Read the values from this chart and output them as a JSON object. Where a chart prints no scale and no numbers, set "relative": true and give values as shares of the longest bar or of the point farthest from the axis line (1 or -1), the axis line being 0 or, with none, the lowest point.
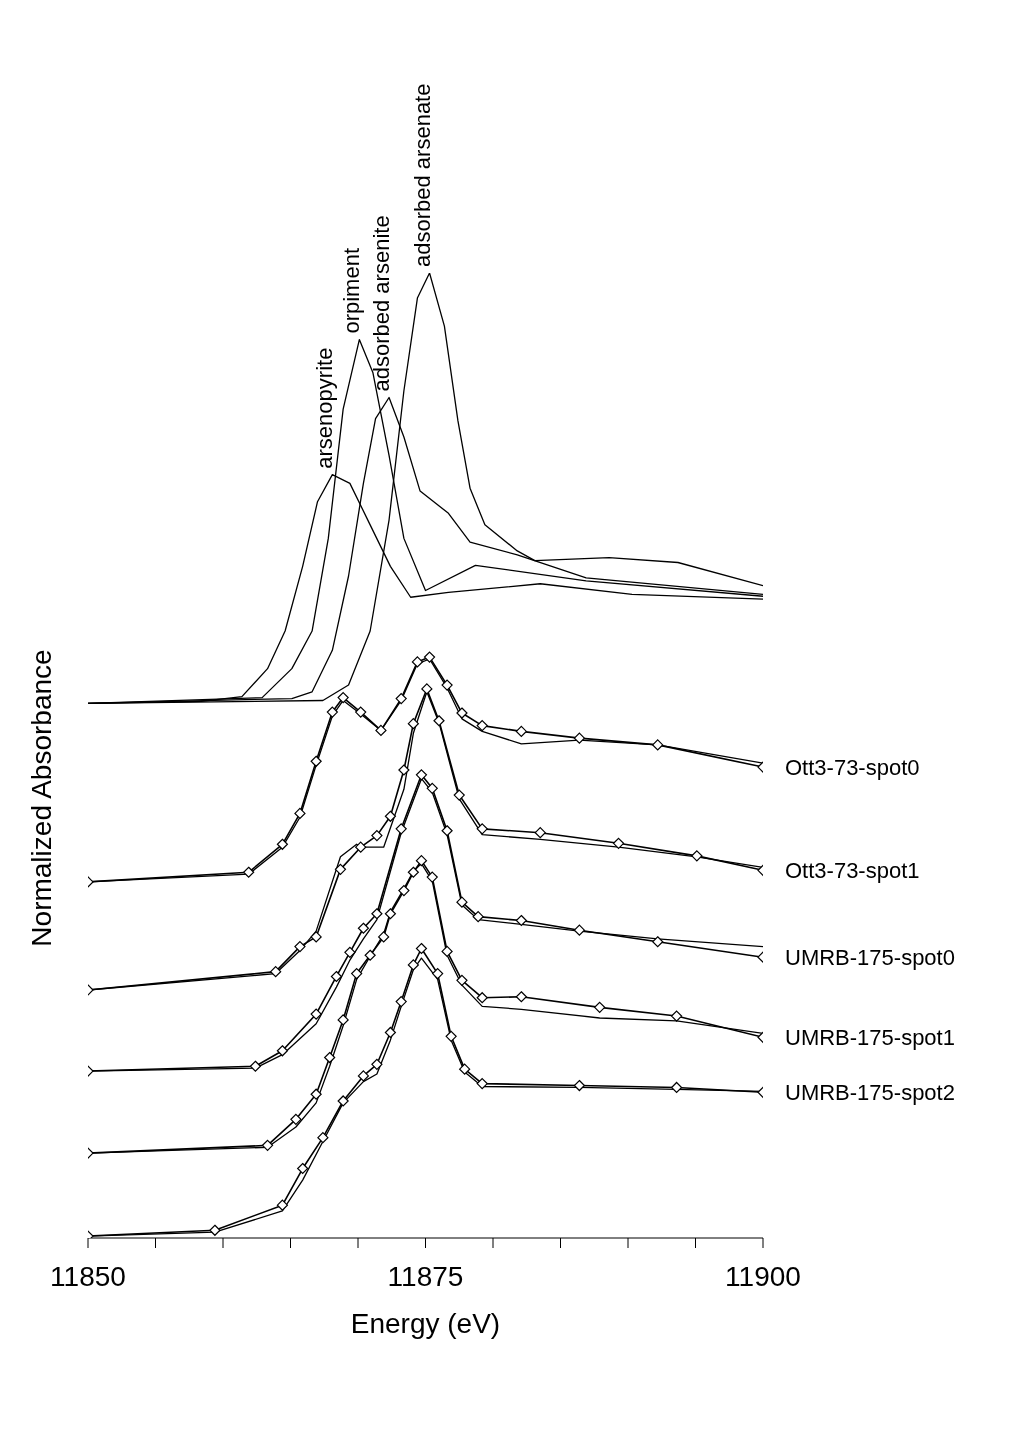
{
  "chart_data": {
    "type": "line",
    "relative": true,
    "xlabel": "Energy (eV)",
    "ylabel": "Normalized Absorbance",
    "xlim": [
      11850,
      11900
    ],
    "xticks": [
      11850,
      {
        "value": 11855,
        "label": null
      },
      {
        "value": 11860,
        "label": null
      },
      {
        "value": 11865,
        "label": null
      },
      {
        "value": 11870,
        "label": null
      },
      11875,
      {
        "value": 11880,
        "label": null
      },
      {
        "value": 11885,
        "label": null
      },
      {
        "value": 11890,
        "label": null
      },
      {
        "value": 11895,
        "label": null
      },
      11900
    ],
    "line_style": "solid",
    "series": [
      {
        "name": "arsenopyrite",
        "color": "#000000",
        "marker": "none",
        "x": [
          11850,
          11858.4,
          11861.4,
          11863.3,
          11864.6,
          11865.9,
          11867,
          11868.1,
          11869.4,
          11870.9,
          11872.4,
          11873.9,
          11876.7,
          11883.5,
          11890.3,
          11900
        ],
        "values": [
          0.554,
          0.556,
          0.561,
          0.59,
          0.629,
          0.696,
          0.763,
          0.791,
          0.782,
          0.739,
          0.696,
          0.664,
          0.669,
          0.678,
          0.667,
          0.662
        ]
      },
      {
        "name": "orpiment",
        "color": "#000000",
        "marker": "none",
        "x": [
          11850,
          11862.9,
          11865.1,
          11866.6,
          11867.8,
          11868.9,
          11870.1,
          11871.1,
          11872.3,
          11873.4,
          11875,
          11878.7,
          11886.9,
          11900
        ],
        "values": [
          0.554,
          0.56,
          0.59,
          0.629,
          0.725,
          0.859,
          0.931,
          0.897,
          0.811,
          0.725,
          0.671,
          0.697,
          0.681,
          0.665
        ]
      },
      {
        "name": "adsorbed arsenite",
        "color": "#000000",
        "marker": "none",
        "x": [
          11850,
          11865.1,
          11866.6,
          11868.1,
          11869.3,
          11870.4,
          11871.3,
          11872.3,
          11873.4,
          11874.6,
          11876.7,
          11878.3,
          11881.8,
          11886.9,
          11900
        ],
        "values": [
          0.554,
          0.559,
          0.566,
          0.609,
          0.686,
          0.782,
          0.849,
          0.871,
          0.83,
          0.774,
          0.751,
          0.721,
          0.708,
          0.684,
          0.667
        ]
      },
      {
        "name": "adsorbed arsenate",
        "color": "#000000",
        "marker": "none",
        "x": [
          11850,
          11867.4,
          11869.3,
          11870.9,
          11872.3,
          11873.4,
          11874.4,
          11875.3,
          11876.4,
          11877.4,
          11878.3,
          11879.4,
          11881.8,
          11883.1,
          11888.6,
          11893.7,
          11900
        ],
        "values": [
          0.554,
          0.557,
          0.573,
          0.629,
          0.744,
          0.878,
          0.974,
          1,
          0.945,
          0.847,
          0.777,
          0.739,
          0.712,
          0.702,
          0.705,
          0.7,
          0.676
        ]
      },
      {
        "name": "Ott3-73-spot0",
        "color": "#000000",
        "marker": "diamond",
        "x": [
          11850,
          11861.9,
          11864.4,
          11865.7,
          11866.9,
          11868.1,
          11868.9,
          11870.2,
          11871.7,
          11873.2,
          11874.4,
          11875.3,
          11876.6,
          11877.7,
          11879.2,
          11882.1,
          11886.4,
          11892.2,
          11900
        ],
        "values": [
          0.369,
          0.379,
          0.408,
          0.44,
          0.494,
          0.545,
          0.56,
          0.545,
          0.526,
          0.559,
          0.597,
          0.602,
          0.573,
          0.544,
          0.531,
          0.525,
          0.518,
          0.511,
          0.488
        ]
      },
      {
        "color": "#000000",
        "marker": "none",
        "x": [
          11850,
          11861.9,
          11864.4,
          11865.7,
          11866.9,
          11868.1,
          11868.9,
          11870.2,
          11871.7,
          11873.2,
          11874.4,
          11875.3,
          11876.6,
          11877.7,
          11879.2,
          11882.1,
          11886.4,
          11892.2,
          11900
        ],
        "values": [
          0.369,
          0.377,
          0.405,
          0.436,
          0.49,
          0.541,
          0.557,
          0.543,
          0.526,
          0.557,
          0.595,
          0.6,
          0.57,
          0.538,
          0.525,
          0.512,
          0.516,
          0.511,
          0.492
        ]
      },
      {
        "name": "Ott3-73-spot1",
        "color": "#000000",
        "marker": "diamond",
        "x": [
          11850,
          11863.9,
          11865.7,
          11866.9,
          11868.7,
          11870.2,
          11871.4,
          11872.4,
          11873.4,
          11874.1,
          11875.1,
          11876,
          11877.5,
          11879.2,
          11883.5,
          11889.3,
          11895.1,
          11900
        ],
        "values": [
          0.257,
          0.276,
          0.302,
          0.312,
          0.382,
          0.405,
          0.417,
          0.437,
          0.485,
          0.533,
          0.569,
          0.536,
          0.459,
          0.424,
          0.42,
          0.409,
          0.396,
          0.381
        ]
      },
      {
        "color": "#000000",
        "marker": "none",
        "x": [
          11850,
          11863.9,
          11865.7,
          11866.9,
          11868.7,
          11869.9,
          11870.2,
          11871.9,
          11873.4,
          11874.1,
          11875.1,
          11876,
          11877.5,
          11879.2,
          11883.5,
          11889.3,
          11895.1,
          11900
        ],
        "values": [
          0.257,
          0.274,
          0.298,
          0.318,
          0.395,
          0.408,
          0.405,
          0.405,
          0.465,
          0.523,
          0.566,
          0.534,
          0.455,
          0.418,
          0.413,
          0.405,
          0.395,
          0.384
        ]
      },
      {
        "name": "UMRB-175-spot0",
        "color": "#000000",
        "marker": "diamond",
        "x": [
          11850,
          11862.4,
          11864.4,
          11866.9,
          11868.4,
          11869.4,
          11870.4,
          11871.4,
          11873.2,
          11874.7,
          11875.5,
          11876.6,
          11877.7,
          11878.9,
          11882.1,
          11886.4,
          11892.2,
          11900
        ],
        "values": [
          0.173,
          0.178,
          0.194,
          0.232,
          0.271,
          0.296,
          0.321,
          0.336,
          0.424,
          0.48,
          0.466,
          0.422,
          0.348,
          0.333,
          0.329,
          0.319,
          0.307,
          0.291
        ]
      },
      {
        "color": "#000000",
        "marker": "none",
        "x": [
          11850,
          11862.4,
          11864.4,
          11866.9,
          11868.4,
          11869.4,
          11870.4,
          11871.4,
          11873.2,
          11874.7,
          11875.5,
          11876.6,
          11877.7,
          11878.9,
          11882.1,
          11886.4,
          11892.2,
          11900
        ],
        "values": [
          0.173,
          0.176,
          0.19,
          0.222,
          0.26,
          0.288,
          0.31,
          0.33,
          0.42,
          0.476,
          0.462,
          0.418,
          0.345,
          0.33,
          0.325,
          0.318,
          0.31,
          0.302
        ]
      },
      {
        "name": "UMRB-175-spot1",
        "color": "#000000",
        "marker": "diamond",
        "x": [
          11850,
          11863.3,
          11865.4,
          11866.9,
          11867.9,
          11868.9,
          11869.9,
          11870.9,
          11871.9,
          11872.4,
          11873.4,
          11874.1,
          11874.7,
          11875.5,
          11876.6,
          11877.7,
          11879.2,
          11882.1,
          11887.9,
          11893.6,
          11900
        ],
        "values": [
          0.088,
          0.096,
          0.123,
          0.149,
          0.187,
          0.226,
          0.274,
          0.293,
          0.312,
          0.336,
          0.36,
          0.379,
          0.391,
          0.374,
          0.297,
          0.267,
          0.249,
          0.25,
          0.239,
          0.23,
          0.208
        ]
      },
      {
        "color": "#000000",
        "marker": "none",
        "x": [
          11850,
          11863.3,
          11865.4,
          11866.9,
          11867.9,
          11868.9,
          11869.9,
          11870.9,
          11871.9,
          11872.4,
          11873.4,
          11874.1,
          11874.7,
          11875.5,
          11876.6,
          11877.7,
          11879.2,
          11882.1,
          11887.9,
          11893.6,
          11900
        ],
        "values": [
          0.088,
          0.094,
          0.115,
          0.14,
          0.178,
          0.22,
          0.268,
          0.292,
          0.315,
          0.338,
          0.362,
          0.38,
          0.388,
          0.37,
          0.293,
          0.262,
          0.24,
          0.237,
          0.228,
          0.225,
          0.212
        ]
      },
      {
        "name": "UMRB-175-spot2",
        "color": "#000000",
        "marker": "diamond",
        "x": [
          11850,
          11859.4,
          11864.4,
          11865.9,
          11867.4,
          11868.9,
          11870.4,
          11871.4,
          11872.4,
          11873.2,
          11874.1,
          11874.7,
          11875.9,
          11876.9,
          11877.9,
          11879.2,
          11886.4,
          11893.6,
          11900
        ],
        "values": [
          0.002,
          0.008,
          0.034,
          0.072,
          0.104,
          0.142,
          0.168,
          0.18,
          0.213,
          0.245,
          0.283,
          0.3,
          0.274,
          0.209,
          0.175,
          0.16,
          0.158,
          0.156,
          0.151
        ]
      },
      {
        "color": "#000000",
        "marker": "none",
        "x": [
          11850,
          11859.4,
          11864.4,
          11865.9,
          11867.4,
          11868.9,
          11870.4,
          11871.4,
          11872.4,
          11873.2,
          11874.1,
          11874.7,
          11875.9,
          11876.9,
          11877.9,
          11879.2,
          11886.4,
          11893.6,
          11900
        ],
        "values": [
          0.002,
          0.006,
          0.028,
          0.06,
          0.1,
          0.14,
          0.162,
          0.17,
          0.205,
          0.24,
          0.278,
          0.29,
          0.268,
          0.205,
          0.172,
          0.157,
          0.156,
          0.154,
          0.152
        ]
      }
    ]
  }
}
